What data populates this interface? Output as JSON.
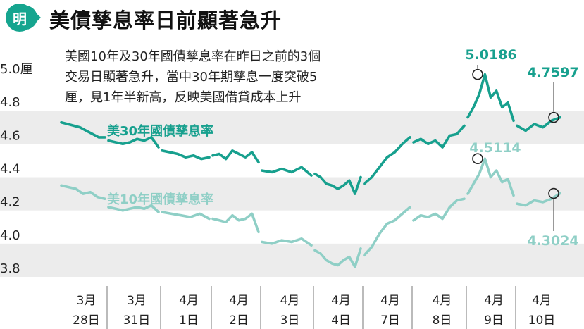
{
  "header": {
    "logo_char": "明",
    "title": "美債孳息率日前顯著急升"
  },
  "annotation": {
    "lines": [
      "美國10年及30年國債孳息率在昨日之前的3個",
      "交易日顯著急升，當中30年期孳息一度突破5",
      "厘，見1年半新高，反映美國借貸成本上升"
    ]
  },
  "colors": {
    "series_30y": "#17a08e",
    "series_10y": "#8fcfc6",
    "band": "#ececec",
    "logo": "#16a58f"
  },
  "chart_data": {
    "type": "line",
    "title": "美債孳息率日前顯著急升",
    "ylim": [
      3.8,
      5.0
    ],
    "y_ticks": [
      "5.0厘",
      "4.8",
      "4.6",
      "4.4",
      "4.2",
      "4.0",
      "3.8"
    ],
    "y_tick_values": [
      5.0,
      4.8,
      4.6,
      4.4,
      4.2,
      4.0,
      3.8
    ],
    "categories": [
      {
        "month": "3月",
        "day": "28日"
      },
      {
        "month": "3月",
        "day": "31日"
      },
      {
        "month": "4月",
        "day": "1日"
      },
      {
        "month": "4月",
        "day": "2日"
      },
      {
        "month": "4月",
        "day": "3日"
      },
      {
        "month": "4月",
        "day": "4日"
      },
      {
        "month": "4月",
        "day": "7日"
      },
      {
        "month": "4月",
        "day": "8日"
      },
      {
        "month": "4月",
        "day": "9日"
      },
      {
        "month": "4月",
        "day": "10日"
      }
    ],
    "series": [
      {
        "name": "美30年國債孳息率",
        "days": [
          [
            4.73,
            4.72,
            4.71,
            4.7,
            4.68,
            4.66,
            4.64,
            4.64
          ],
          [
            4.62,
            4.61,
            4.6,
            4.61,
            4.63,
            4.62,
            4.64,
            4.58
          ],
          [
            4.56,
            4.55,
            4.54,
            4.52,
            4.53,
            4.51,
            4.52
          ],
          [
            4.53,
            4.54,
            4.51,
            4.56,
            4.54,
            4.52,
            4.55,
            4.49
          ],
          [
            4.44,
            4.43,
            4.45,
            4.43,
            4.46,
            4.41
          ],
          [
            4.42,
            4.4,
            4.36,
            4.35,
            4.33,
            4.35,
            4.38,
            4.3,
            4.4
          ],
          [
            4.36,
            4.4,
            4.46,
            4.52,
            4.55,
            4.6,
            4.64
          ],
          [
            4.61,
            4.63,
            4.6,
            4.62,
            4.58,
            4.65,
            4.66,
            4.71
          ],
          [
            4.76,
            4.82,
            4.9,
            5.0186,
            4.88,
            4.92,
            4.82,
            4.85,
            4.74
          ],
          [
            4.71,
            4.68,
            4.72,
            4.7,
            4.74,
            4.7597
          ]
        ],
        "labeled_points": [
          {
            "value": 5.0186,
            "label": "5.0186"
          },
          {
            "value": 4.7597,
            "label": "4.7597"
          }
        ]
      },
      {
        "name": "美10年國債孳息率",
        "days": [
          [
            4.35,
            4.34,
            4.33,
            4.3,
            4.31,
            4.28,
            4.27
          ],
          [
            4.22,
            4.21,
            4.2,
            4.21,
            4.22,
            4.21,
            4.23,
            4.19
          ],
          [
            4.19,
            4.18,
            4.17,
            4.16,
            4.18,
            4.15
          ],
          [
            4.15,
            4.14,
            4.13,
            4.17,
            4.14,
            4.15,
            4.18,
            4.07
          ],
          [
            4.01,
            4.0,
            4.02,
            4.01,
            4.03,
            3.99
          ],
          [
            3.96,
            3.94,
            3.9,
            3.88,
            3.87,
            3.9,
            3.92,
            3.86,
            3.97
          ],
          [
            3.93,
            3.98,
            4.06,
            4.12,
            4.14,
            4.18,
            4.22
          ],
          [
            4.14,
            4.17,
            4.16,
            4.18,
            4.15,
            4.22,
            4.26,
            4.27
          ],
          [
            4.3,
            4.36,
            4.42,
            4.5114,
            4.4,
            4.44,
            4.37,
            4.39,
            4.29
          ],
          [
            4.24,
            4.23,
            4.26,
            4.25,
            4.27,
            4.3024
          ]
        ],
        "labeled_points": [
          {
            "value": 4.5114,
            "label": "4.5114"
          },
          {
            "value": 4.3024,
            "label": "4.3024"
          }
        ]
      }
    ]
  }
}
